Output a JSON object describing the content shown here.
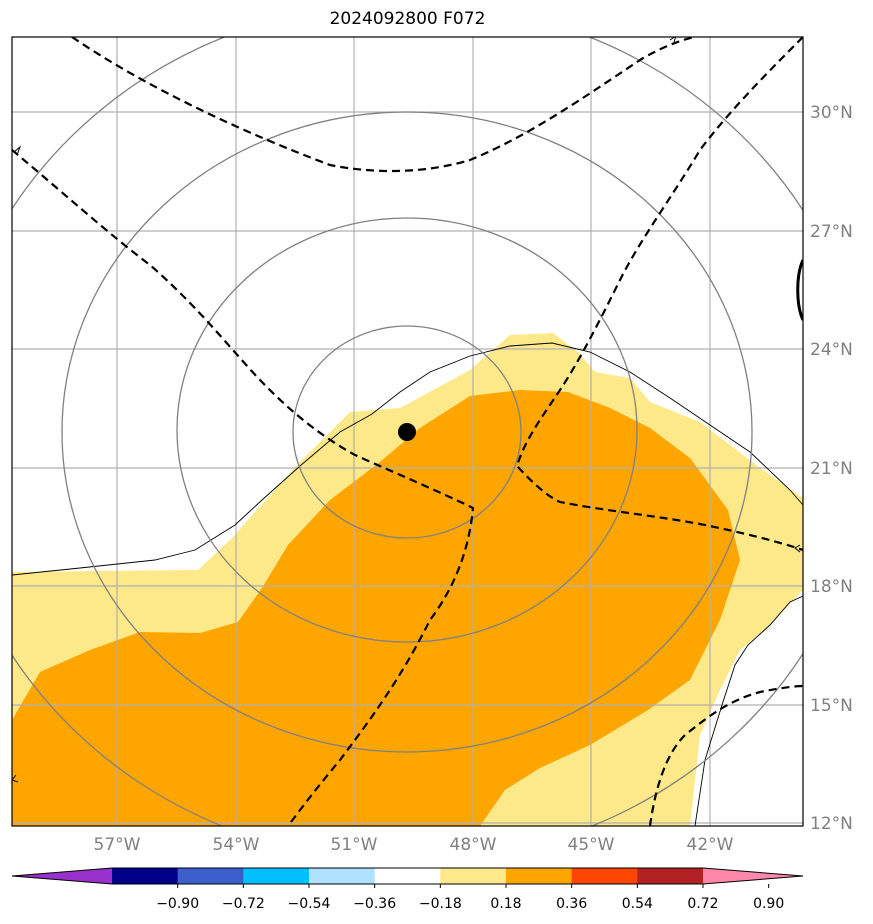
{
  "title": "2024092800 F072",
  "map": {
    "lat_labels": [
      "30°N",
      "27°N",
      "24°N",
      "21°N",
      "18°N",
      "15°N",
      "12°N"
    ],
    "lon_labels": [
      "57°W",
      "54°W",
      "51°W",
      "48°W",
      "45°W",
      "42°W"
    ],
    "storm_center": {
      "lon": -49.6,
      "lat": 21.9
    },
    "fill_colors": {
      "light": "#fee98a",
      "dark": "#ffa500"
    }
  },
  "colorbar": {
    "ticks": [
      "−0.90",
      "−0.72",
      "−0.54",
      "−0.36",
      "−0.18",
      "0.18",
      "0.36",
      "0.54",
      "0.72",
      "0.90"
    ],
    "colors": [
      "#9932cc",
      "#00008b",
      "#3a5fcd",
      "#00bfff",
      "#b0e2ff",
      "#ffffff",
      "#fee98a",
      "#ffa500",
      "#ff4500",
      "#b22222",
      "#ff88aa"
    ]
  }
}
